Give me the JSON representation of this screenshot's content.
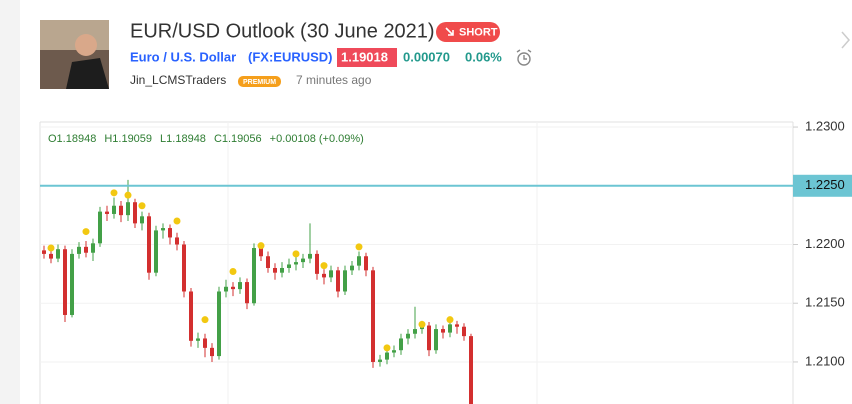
{
  "header": {
    "title": "EUR/USD Outlook (30 June 2021)",
    "badge": "SHORT",
    "symbol_name": "Euro / U.S. Dollar",
    "ticker": "(FX:EURUSD)",
    "price": "1.19018",
    "change": "0.00070",
    "change_pct": "0.06%",
    "author": "Jin_LCMSTraders",
    "author_badge": "PREMIUM",
    "time": "7 minutes ago"
  },
  "chart_data": {
    "type": "candlestick",
    "legend": [
      "O1.18948",
      "H1.19059",
      "L1.18948",
      "C1.19056",
      "+0.00108 (+0.09%)"
    ],
    "up_color": "#43a047",
    "down_color": "#d32f2f",
    "ylim": [
      1.20642,
      1.23043
    ],
    "yticks": [
      {
        "value": 1.23,
        "label": "1.2300"
      },
      {
        "value": 1.22,
        "label": "1.2200"
      },
      {
        "value": 1.215,
        "label": "1.2150"
      },
      {
        "value": 1.21,
        "label": "1.2100"
      }
    ],
    "hline": {
      "value": 1.225,
      "label": "1.2250",
      "color": "#6cc5d3"
    },
    "candles": [
      [
        1.2195,
        1.2199,
        1.2188,
        1.2192
      ],
      [
        1.2192,
        1.2196,
        1.2184,
        1.2188
      ],
      [
        1.2188,
        1.22,
        1.2185,
        1.2196
      ],
      [
        1.2196,
        1.2199,
        1.2134,
        1.214
      ],
      [
        1.214,
        1.2196,
        1.2138,
        1.2192
      ],
      [
        1.2192,
        1.2202,
        1.2188,
        1.2198
      ],
      [
        1.2198,
        1.2203,
        1.2189,
        1.2193
      ],
      [
        1.2193,
        1.2205,
        1.2186,
        1.2201
      ],
      [
        1.2201,
        1.2232,
        1.2198,
        1.2228
      ],
      [
        1.2228,
        1.2233,
        1.222,
        1.2226
      ],
      [
        1.2226,
        1.224,
        1.2222,
        1.2233
      ],
      [
        1.2233,
        1.2237,
        1.2219,
        1.2225
      ],
      [
        1.2225,
        1.2255,
        1.222,
        1.2236
      ],
      [
        1.2236,
        1.2239,
        1.2214,
        1.2218
      ],
      [
        1.2218,
        1.2228,
        1.2212,
        1.2224
      ],
      [
        1.2224,
        1.2227,
        1.217,
        1.2176
      ],
      [
        1.2176,
        1.2216,
        1.2173,
        1.2212
      ],
      [
        1.2212,
        1.2218,
        1.2205,
        1.2214
      ],
      [
        1.2214,
        1.2217,
        1.22,
        1.2206
      ],
      [
        1.2206,
        1.221,
        1.2195,
        1.22
      ],
      [
        1.22,
        1.2203,
        1.2155,
        1.216
      ],
      [
        1.216,
        1.2163,
        1.2113,
        1.2118
      ],
      [
        1.2118,
        1.2125,
        1.2112,
        1.212
      ],
      [
        1.212,
        1.2124,
        1.2104,
        1.2112
      ],
      [
        1.2112,
        1.2116,
        1.21,
        1.2105
      ],
      [
        1.2105,
        1.2164,
        1.2102,
        1.216
      ],
      [
        1.216,
        1.217,
        1.2155,
        1.2164
      ],
      [
        1.2164,
        1.2168,
        1.2156,
        1.2162
      ],
      [
        1.2162,
        1.2172,
        1.2158,
        1.2168
      ],
      [
        1.2168,
        1.2171,
        1.2145,
        1.215
      ],
      [
        1.215,
        1.2201,
        1.2148,
        1.2197
      ],
      [
        1.2197,
        1.22,
        1.2186,
        1.219
      ],
      [
        1.219,
        1.2194,
        1.2176,
        1.218
      ],
      [
        1.218,
        1.2184,
        1.217,
        1.2176
      ],
      [
        1.2176,
        1.2185,
        1.2172,
        1.218
      ],
      [
        1.218,
        1.2188,
        1.2176,
        1.2183
      ],
      [
        1.2183,
        1.219,
        1.2178,
        1.2185
      ],
      [
        1.2185,
        1.2192,
        1.218,
        1.2188
      ],
      [
        1.2188,
        1.2218,
        1.2184,
        1.2192
      ],
      [
        1.2192,
        1.2195,
        1.217,
        1.2175
      ],
      [
        1.2175,
        1.2179,
        1.2166,
        1.2172
      ],
      [
        1.2172,
        1.2182,
        1.2168,
        1.2178
      ],
      [
        1.2178,
        1.2181,
        1.2155,
        1.216
      ],
      [
        1.216,
        1.2182,
        1.2157,
        1.2178
      ],
      [
        1.2178,
        1.2186,
        1.2174,
        1.2182
      ],
      [
        1.2182,
        1.2194,
        1.2178,
        1.219
      ],
      [
        1.219,
        1.2193,
        1.2173,
        1.2178
      ],
      [
        1.2178,
        1.2181,
        1.2095,
        1.21
      ],
      [
        1.21,
        1.2106,
        1.2096,
        1.2102
      ],
      [
        1.2102,
        1.2112,
        1.2098,
        1.2108
      ],
      [
        1.2108,
        1.2114,
        1.2104,
        1.211
      ],
      [
        1.211,
        1.2124,
        1.2106,
        1.212
      ],
      [
        1.212,
        1.2128,
        1.2115,
        1.2124
      ],
      [
        1.2124,
        1.2147,
        1.212,
        1.2128
      ],
      [
        1.2128,
        1.2135,
        1.2124,
        1.2131
      ],
      [
        1.2131,
        1.2134,
        1.2105,
        1.211
      ],
      [
        1.211,
        1.2132,
        1.2107,
        1.2128
      ],
      [
        1.2128,
        1.2131,
        1.212,
        1.2125
      ],
      [
        1.2125,
        1.2136,
        1.2121,
        1.2132
      ],
      [
        1.2132,
        1.2135,
        1.2124,
        1.213
      ],
      [
        1.213,
        1.2133,
        1.2118,
        1.2122
      ],
      [
        1.2122,
        1.2124,
        1.206,
        1.2062
      ]
    ],
    "markers": [
      {
        "index": 1,
        "value": 1.2197
      },
      {
        "index": 6,
        "value": 1.2211
      },
      {
        "index": 10,
        "value": 1.2244
      },
      {
        "index": 12,
        "value": 1.2242
      },
      {
        "index": 14,
        "value": 1.2233
      },
      {
        "index": 19,
        "value": 1.222
      },
      {
        "index": 23,
        "value": 1.2136
      },
      {
        "index": 27,
        "value": 1.2177
      },
      {
        "index": 31,
        "value": 1.2199
      },
      {
        "index": 36,
        "value": 1.2192
      },
      {
        "index": 40,
        "value": 1.2182
      },
      {
        "index": 45,
        "value": 1.2198
      },
      {
        "index": 49,
        "value": 1.2112
      },
      {
        "index": 54,
        "value": 1.2132
      },
      {
        "index": 58,
        "value": 1.2136
      }
    ],
    "marker_color": "#f2c811"
  }
}
